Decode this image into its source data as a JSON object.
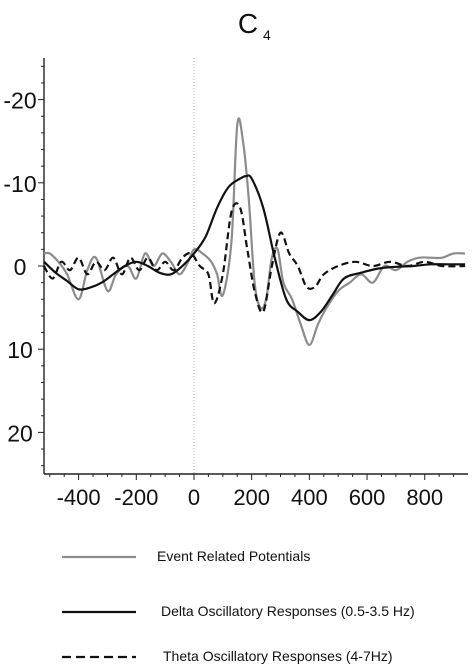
{
  "chart_data": {
    "type": "line",
    "title": "C",
    "title_subscript": "4",
    "x_ticks": [
      "-400",
      "-200",
      "0",
      "200",
      "400",
      "600",
      "800"
    ],
    "x_tick_values": [
      -400,
      -200,
      0,
      200,
      400,
      600,
      800
    ],
    "y_ticks": [
      "-20",
      "-10",
      "0",
      "10",
      "20"
    ],
    "y_tick_values": [
      -20,
      -10,
      0,
      10,
      20
    ],
    "xlim": [
      -520,
      950
    ],
    "ylim": [
      -25,
      25
    ],
    "y_inverted": true,
    "stimulus_line_x": 0,
    "series": [
      {
        "name": "Event Related Potentials",
        "color": "#8c8c8c",
        "dash": "solid",
        "x": [
          -520,
          -500,
          -470,
          -440,
          -400,
          -370,
          -340,
          -300,
          -270,
          -230,
          -200,
          -170,
          -140,
          -110,
          -80,
          -50,
          -20,
          0,
          30,
          60,
          80,
          100,
          130,
          150,
          170,
          190,
          210,
          230,
          250,
          270,
          290,
          310,
          340,
          370,
          400,
          430,
          460,
          500,
          540,
          580,
          620,
          660,
          700,
          740,
          780,
          820,
          860,
          900,
          940
        ],
        "values": [
          -1.5,
          -1.5,
          -0.5,
          1,
          4,
          0.5,
          -1,
          3,
          1,
          0,
          1.5,
          -1.5,
          0,
          -1.5,
          -0.5,
          1,
          -0.5,
          -2,
          -1.5,
          -0.5,
          1,
          3.5,
          -3,
          -17,
          -15,
          -8,
          2,
          5,
          4,
          -1,
          -2,
          2,
          4,
          7,
          9.5,
          7,
          5,
          3,
          2,
          1,
          2,
          0,
          0.5,
          -0.5,
          -1,
          -1,
          -1,
          -1.5,
          -1.5
        ]
      },
      {
        "name": "Delta Oscillatory Responses (0.5-3.5 Hz)",
        "color": "#111111",
        "dash": "solid",
        "x": [
          -520,
          -480,
          -440,
          -400,
          -360,
          -320,
          -280,
          -240,
          -200,
          -160,
          -120,
          -80,
          -40,
          0,
          40,
          80,
          120,
          160,
          180,
          200,
          240,
          280,
          320,
          360,
          400,
          440,
          480,
          520,
          580,
          640,
          700,
          760,
          820,
          880,
          940
        ],
        "values": [
          -0.5,
          0.8,
          1.8,
          2.8,
          2.6,
          2,
          1,
          0,
          -0.5,
          0,
          0.8,
          1,
          0,
          -1.5,
          -3.5,
          -7,
          -9.5,
          -10.5,
          -10.8,
          -10.5,
          -7,
          -1,
          4,
          5.5,
          6.5,
          5.5,
          3.5,
          1.5,
          0.8,
          0.3,
          0.1,
          0,
          -0.2,
          -0.2,
          -0.2
        ]
      },
      {
        "name": "Theta  Oscillatory Responses (4-7Hz)",
        "color": "#111111",
        "dash": "dashed",
        "x": [
          -520,
          -490,
          -460,
          -430,
          -400,
          -370,
          -340,
          -310,
          -280,
          -250,
          -220,
          -190,
          -160,
          -130,
          -100,
          -70,
          -40,
          -10,
          20,
          50,
          70,
          100,
          130,
          160,
          185,
          210,
          240,
          270,
          300,
          330,
          360,
          390,
          420,
          450,
          500,
          560,
          620,
          680,
          740,
          800,
          860,
          940
        ],
        "values": [
          0,
          1.5,
          -0.5,
          0.5,
          -1,
          1,
          -0.5,
          0.5,
          -1,
          1,
          -1,
          0.5,
          -1,
          0.5,
          -0.5,
          0.5,
          -1,
          -1.5,
          0,
          1,
          4.5,
          1,
          -6.5,
          -7,
          -2,
          3,
          5.5,
          0,
          -4,
          -1.5,
          0,
          2.5,
          2.5,
          1,
          0,
          -0.5,
          0,
          -0.5,
          0,
          -0.5,
          0,
          0
        ]
      }
    ]
  }
}
